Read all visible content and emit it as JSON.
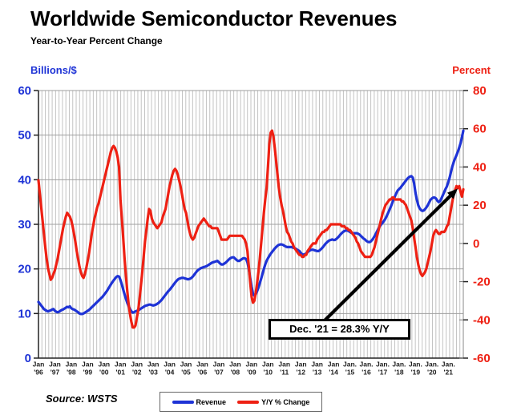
{
  "title": "Worldwide Semiconductor Revenues",
  "subtitle": "Year-to-Year Percent Change",
  "left_axis": {
    "title": "Billions/$",
    "color": "#1e33d6",
    "ticks": [
      0,
      10,
      20,
      30,
      40,
      50,
      60
    ],
    "range": [
      0,
      60
    ]
  },
  "right_axis": {
    "title": "Percent",
    "color": "#ee2013",
    "ticks": [
      -60,
      -40,
      -20,
      0,
      20,
      40,
      60,
      80
    ],
    "range": [
      -60,
      80
    ]
  },
  "x_axis": {
    "ticks": [
      {
        "month": "Jan",
        "year": "'96"
      },
      {
        "month": "Jan",
        "year": "'97"
      },
      {
        "month": "Jan",
        "year": "'98"
      },
      {
        "month": "Jan",
        "year": "'99"
      },
      {
        "month": "Jan",
        "year": "'00"
      },
      {
        "month": "Jan",
        "year": "'01"
      },
      {
        "month": "Jan",
        "year": "'02"
      },
      {
        "month": "Jan",
        "year": "'03"
      },
      {
        "month": "Jan",
        "year": "'04"
      },
      {
        "month": "Jan",
        "year": "'05"
      },
      {
        "month": "Jan",
        "year": "'06"
      },
      {
        "month": "Jan",
        "year": "'07"
      },
      {
        "month": "Jan",
        "year": "'08"
      },
      {
        "month": "Jan",
        "year": "'09"
      },
      {
        "month": "Jan",
        "year": "'10"
      },
      {
        "month": "Jan",
        "year": "'11"
      },
      {
        "month": "Jan",
        "year": "'12"
      },
      {
        "month": "Jan",
        "year": "'13"
      },
      {
        "month": "Jan",
        "year": "'14"
      },
      {
        "month": "Jan.",
        "year": "'15"
      },
      {
        "month": "Jan.",
        "year": "'16"
      },
      {
        "month": "Jan.",
        "year": "'17"
      },
      {
        "month": "Jan.",
        "year": "'18"
      },
      {
        "month": "Jan.",
        "year": "'19"
      },
      {
        "month": "Jan.",
        "year": "'20"
      },
      {
        "month": "Jan.",
        "year": "'21"
      }
    ]
  },
  "legend": {
    "items": [
      {
        "label": "Revenue",
        "color": "#1e33d6"
      },
      {
        "label": "Y/Y % Change",
        "color": "#ee2013"
      }
    ]
  },
  "annotation": {
    "text": "Dec. '21 = 28.3% Y/Y"
  },
  "source": "Source: WSTS",
  "chart_data": {
    "type": "line",
    "title": "Worldwide Semiconductor Revenues",
    "subtitle": "Year-to-Year Percent Change",
    "x_unit": "month",
    "x_start": "Jan 1996",
    "x_end": "Dec 2021",
    "left_ylim": [
      0,
      60
    ],
    "right_ylim": [
      -60,
      80
    ],
    "grid": "dense vertical lines, horizontal lines at left-axis ticks",
    "legend_position": "bottom-center",
    "annotation_target": {
      "series": "Y/Y % Change",
      "x": "Dec 2021",
      "value": 28.3
    },
    "series": [
      {
        "name": "Revenue",
        "axis": "left",
        "unit": "billions USD",
        "color": "#1e33d6",
        "values": [
          12.6,
          12.2,
          11.8,
          11.4,
          11.0,
          10.8,
          10.6,
          10.5,
          10.6,
          10.7,
          10.9,
          11.0,
          10.6,
          10.4,
          10.3,
          10.4,
          10.6,
          10.8,
          10.9,
          11.1,
          11.3,
          11.5,
          11.4,
          11.6,
          11.2,
          11.0,
          10.9,
          10.7,
          10.5,
          10.3,
          10.0,
          9.9,
          9.9,
          10.0,
          10.2,
          10.4,
          10.6,
          10.8,
          11.1,
          11.4,
          11.7,
          12.0,
          12.3,
          12.6,
          12.9,
          13.2,
          13.5,
          13.8,
          14.2,
          14.6,
          15.0,
          15.5,
          16.0,
          16.5,
          17.0,
          17.4,
          17.8,
          18.2,
          18.4,
          18.3,
          17.5,
          16.5,
          15.4,
          14.3,
          13.3,
          12.4,
          11.6,
          11.0,
          10.5,
          10.2,
          10.3,
          10.5,
          10.6,
          10.7,
          10.9,
          11.1,
          11.3,
          11.5,
          11.7,
          11.8,
          11.9,
          12.0,
          12.0,
          11.9,
          11.8,
          11.9,
          12.0,
          12.2,
          12.4,
          12.7,
          13.0,
          13.4,
          13.8,
          14.2,
          14.6,
          15.0,
          15.3,
          15.7,
          16.1,
          16.5,
          16.9,
          17.3,
          17.6,
          17.8,
          17.9,
          18.0,
          18.0,
          17.9,
          17.8,
          17.7,
          17.7,
          17.8,
          18.0,
          18.3,
          18.7,
          19.1,
          19.5,
          19.8,
          20.0,
          20.2,
          20.3,
          20.4,
          20.5,
          20.6,
          20.8,
          21.0,
          21.2,
          21.4,
          21.5,
          21.6,
          21.7,
          21.8,
          21.5,
          21.2,
          21.0,
          21.0,
          21.2,
          21.4,
          21.7,
          22.0,
          22.3,
          22.5,
          22.6,
          22.6,
          22.3,
          22.0,
          21.8,
          21.8,
          22.0,
          22.2,
          22.4,
          22.4,
          22.2,
          21.5,
          20.0,
          18.0,
          16.0,
          14.4,
          14.0,
          14.3,
          15.0,
          15.8,
          16.8,
          17.8,
          18.9,
          20.0,
          21.0,
          21.8,
          22.4,
          22.9,
          23.4,
          23.8,
          24.2,
          24.6,
          24.9,
          25.2,
          25.4,
          25.5,
          25.5,
          25.4,
          25.2,
          25.0,
          24.9,
          24.9,
          24.9,
          24.9,
          24.8,
          24.7,
          24.6,
          24.4,
          24.2,
          24.0,
          23.6,
          23.3,
          23.2,
          23.3,
          23.5,
          23.8,
          24.0,
          24.2,
          24.3,
          24.3,
          24.2,
          24.1,
          24.0,
          24.0,
          24.2,
          24.5,
          24.8,
          25.2,
          25.6,
          25.9,
          26.2,
          26.4,
          26.5,
          26.6,
          26.5,
          26.5,
          26.7,
          27.0,
          27.3,
          27.7,
          28.0,
          28.3,
          28.5,
          28.6,
          28.6,
          28.5,
          28.3,
          28.1,
          28.0,
          28.0,
          28.0,
          28.0,
          27.9,
          27.7,
          27.4,
          27.1,
          26.8,
          26.6,
          26.3,
          26.1,
          26.0,
          26.1,
          26.4,
          26.8,
          27.3,
          27.9,
          28.5,
          29.1,
          29.6,
          30.0,
          30.4,
          30.8,
          31.3,
          31.9,
          32.6,
          33.3,
          34.0,
          34.8,
          35.6,
          36.3,
          37.0,
          37.6,
          37.9,
          38.2,
          38.6,
          39.0,
          39.4,
          39.8,
          40.2,
          40.5,
          40.7,
          40.8,
          40.5,
          39.2,
          37.0,
          35.5,
          34.3,
          33.6,
          33.2,
          33.0,
          33.1,
          33.4,
          33.8,
          34.3,
          34.9,
          35.5,
          35.8,
          36.0,
          36.0,
          35.8,
          35.3,
          35.0,
          35.2,
          35.8,
          36.5,
          37.2,
          37.9,
          38.5,
          39.5,
          40.5,
          41.8,
          43.0,
          44.0,
          44.8,
          45.5,
          46.3,
          47.2,
          48.2,
          49.5,
          51.0
        ]
      },
      {
        "name": "Y/Y % Change",
        "axis": "right",
        "unit": "percent",
        "color": "#ee2013",
        "values": [
          33,
          26,
          19,
          12,
          5,
          -2,
          -8,
          -13,
          -16,
          -19,
          -18,
          -16,
          -14,
          -11,
          -8,
          -4,
          0,
          4,
          8,
          11,
          14,
          16,
          15,
          14,
          12,
          9,
          5,
          1,
          -4,
          -8,
          -12,
          -15,
          -17,
          -18,
          -16,
          -13,
          -9,
          -5,
          0,
          5,
          9,
          13,
          16,
          19,
          21,
          24,
          27,
          30,
          33,
          36,
          39,
          42,
          45,
          48,
          50,
          51,
          50,
          48,
          45,
          40,
          23,
          13,
          3,
          -8,
          -17,
          -25,
          -32,
          -37,
          -41,
          -44,
          -44,
          -43,
          -39,
          -35,
          -29,
          -22,
          -15,
          -7,
          1,
          7,
          13,
          18,
          17,
          13,
          11,
          10,
          9,
          8,
          9,
          10,
          11,
          14,
          16,
          18,
          22,
          26,
          30,
          33,
          36,
          38,
          39,
          38,
          36,
          33,
          30,
          26,
          22,
          18,
          16,
          12,
          8,
          5,
          3,
          2,
          3,
          5,
          7,
          9,
          10,
          11,
          12,
          13,
          12,
          11,
          10,
          9,
          9,
          8,
          8,
          8,
          8,
          8,
          6,
          4,
          2,
          2,
          2,
          2,
          2,
          3,
          4,
          4,
          4,
          4,
          4,
          4,
          4,
          4,
          4,
          4,
          3,
          2,
          0,
          -4,
          -12,
          -20,
          -28,
          -31,
          -30,
          -26,
          -21,
          -15,
          -8,
          0,
          8,
          16,
          23,
          29,
          40,
          52,
          58,
          59,
          56,
          50,
          43,
          36,
          29,
          24,
          20,
          17,
          13,
          9,
          6,
          5,
          3,
          1,
          0,
          -2,
          -3,
          -4,
          -5,
          -6,
          -6,
          -7,
          -7,
          -6,
          -6,
          -4,
          -3,
          -2,
          -1,
          0,
          0,
          0,
          2,
          3,
          4,
          5,
          6,
          6,
          7,
          7,
          8,
          9,
          10,
          10,
          10,
          10,
          10,
          10,
          10,
          10,
          9,
          9,
          9,
          8,
          8,
          7,
          7,
          6,
          5,
          4,
          3,
          1,
          0,
          -2,
          -4,
          -5,
          -6,
          -7,
          -7,
          -7,
          -7,
          -7,
          -6,
          -4,
          -2,
          1,
          4,
          7,
          10,
          13,
          16,
          18,
          20,
          21,
          22,
          23,
          23,
          24,
          24,
          23,
          23,
          23,
          23,
          23,
          22,
          22,
          21,
          20,
          18,
          16,
          14,
          12,
          8,
          3,
          -2,
          -7,
          -11,
          -14,
          -16,
          -17,
          -16,
          -15,
          -13,
          -10,
          -7,
          -4,
          0,
          4,
          6,
          7,
          6,
          5,
          5,
          6,
          6,
          6,
          7,
          9,
          10,
          14,
          18,
          22,
          26,
          28,
          30,
          29,
          30,
          27,
          24.5,
          28.3
        ]
      }
    ]
  }
}
